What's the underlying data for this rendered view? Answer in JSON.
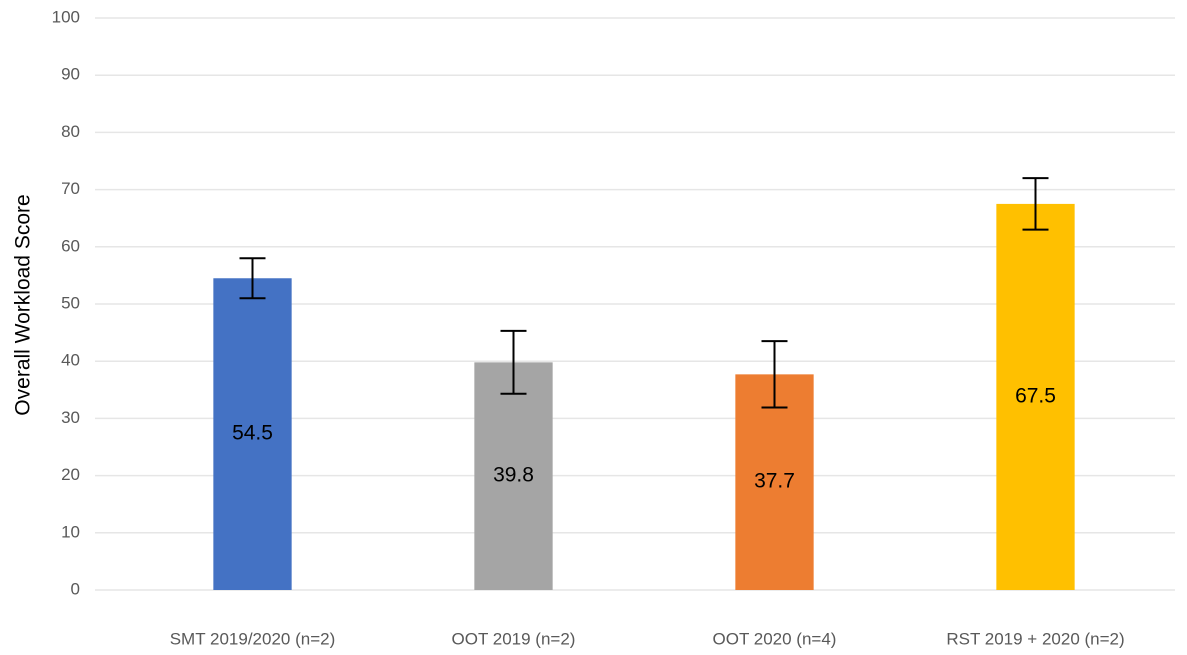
{
  "chart_data": {
    "type": "bar",
    "y_label": "Overall Workload Score",
    "categories": [
      "SMT 2019/2020 (n=2)",
      "OOT 2019 (n=2)",
      "OOT 2020 (n=4)",
      "RST 2019 + 2020 (n=2)"
    ],
    "values": [
      54.5,
      39.8,
      37.7,
      67.5
    ],
    "errors": [
      3.5,
      5.5,
      5.8,
      4.5
    ],
    "colors": [
      "#4472c4",
      "#a5a5a5",
      "#ed7d31",
      "#ffc000"
    ],
    "ylim": [
      0,
      100
    ],
    "yticks": [
      0,
      10,
      20,
      30,
      40,
      50,
      60,
      70,
      80,
      90,
      100
    ],
    "grid": true
  }
}
